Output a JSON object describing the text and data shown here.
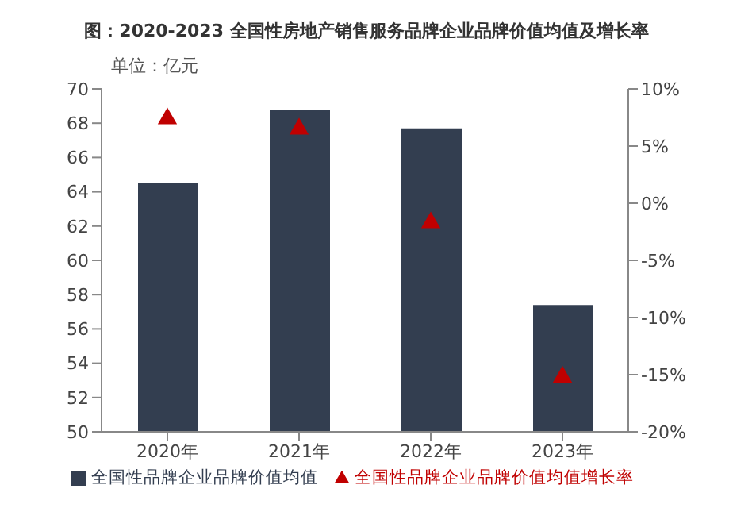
{
  "chart_data": {
    "type": "bar",
    "title": "图：2020-2023 全国性房地产销售服务品牌企业品牌价值均值及增长率",
    "annotations": [
      "单位：亿元"
    ],
    "categories": [
      "2020年",
      "2021年",
      "2022年",
      "2023年"
    ],
    "series": [
      {
        "name": "全国性品牌企业品牌价值均值",
        "color": "#333e50",
        "values": [
          64.5,
          68.8,
          67.7,
          57.4
        ]
      },
      {
        "name": "全国性品牌企业品牌价值均值增长率",
        "type": "scatter",
        "axis": "y2",
        "marker": "triangle",
        "color": "#c00000",
        "values": [
          7.4,
          6.5,
          -1.7,
          -15.2
        ]
      }
    ],
    "ylim": [
      50,
      70
    ],
    "yticks": [
      50,
      52,
      54,
      56,
      58,
      60,
      62,
      64,
      66,
      68,
      70
    ],
    "y2lim": [
      -20,
      10
    ],
    "y2ticks": [
      {
        "value": -20,
        "label": "-20%"
      },
      {
        "value": -15,
        "label": "-15%"
      },
      {
        "value": -10,
        "label": "-10%"
      },
      {
        "value": -5,
        "label": "-5%"
      },
      {
        "value": 0,
        "label": "0%"
      },
      {
        "value": 5,
        "label": "5%"
      },
      {
        "value": 10,
        "label": "10%"
      }
    ],
    "grid": false,
    "legend": "bottom"
  }
}
